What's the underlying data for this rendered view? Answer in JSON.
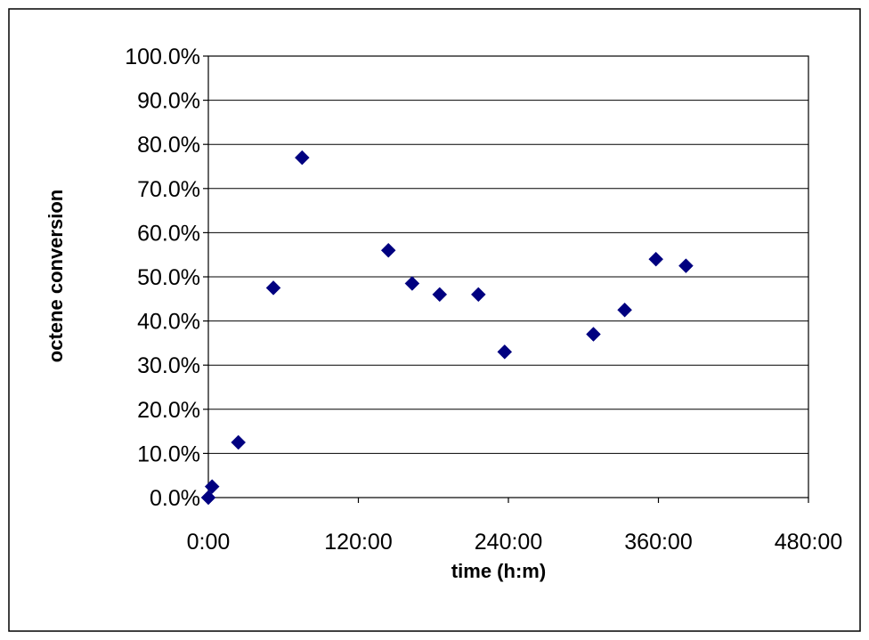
{
  "chart_data": {
    "type": "scatter",
    "title": "",
    "xlabel": "time (h:m)",
    "ylabel": "octene conversion",
    "x_unit": "hours",
    "xlim": [
      0,
      480
    ],
    "ylim": [
      0,
      100
    ],
    "x_ticks": [
      {
        "value": 0,
        "label": "0:00"
      },
      {
        "value": 120,
        "label": "120:00"
      },
      {
        "value": 240,
        "label": "240:00"
      },
      {
        "value": 360,
        "label": "360:00"
      },
      {
        "value": 480,
        "label": "480:00"
      }
    ],
    "y_ticks": [
      {
        "value": 0,
        "label": "0.0%"
      },
      {
        "value": 10,
        "label": "10.0%"
      },
      {
        "value": 20,
        "label": "20.0%"
      },
      {
        "value": 30,
        "label": "30.0%"
      },
      {
        "value": 40,
        "label": "40.0%"
      },
      {
        "value": 50,
        "label": "50.0%"
      },
      {
        "value": 60,
        "label": "60.0%"
      },
      {
        "value": 70,
        "label": "70.0%"
      },
      {
        "value": 80,
        "label": "80.0%"
      },
      {
        "value": 90,
        "label": "90.0%"
      },
      {
        "value": 100,
        "label": "100.0%"
      }
    ],
    "grid": {
      "horizontal": true,
      "vertical": false
    },
    "legend": "none",
    "series": [
      {
        "marker": "diamond",
        "color": "#000080",
        "points": [
          {
            "x": 0,
            "y": 0.0
          },
          {
            "x": 3,
            "y": 2.5
          },
          {
            "x": 24,
            "y": 12.5
          },
          {
            "x": 52,
            "y": 47.5
          },
          {
            "x": 75,
            "y": 77.0
          },
          {
            "x": 144,
            "y": 56.0
          },
          {
            "x": 163,
            "y": 48.5
          },
          {
            "x": 185,
            "y": 46.0
          },
          {
            "x": 216,
            "y": 46.0
          },
          {
            "x": 237,
            "y": 33.0
          },
          {
            "x": 308,
            "y": 37.0
          },
          {
            "x": 333,
            "y": 42.5
          },
          {
            "x": 358,
            "y": 54.0
          },
          {
            "x": 382,
            "y": 52.5
          }
        ]
      }
    ]
  },
  "colors": {
    "background": "#ffffff",
    "frame": "#000000",
    "gridline": "#000000",
    "marker": "#000080"
  }
}
